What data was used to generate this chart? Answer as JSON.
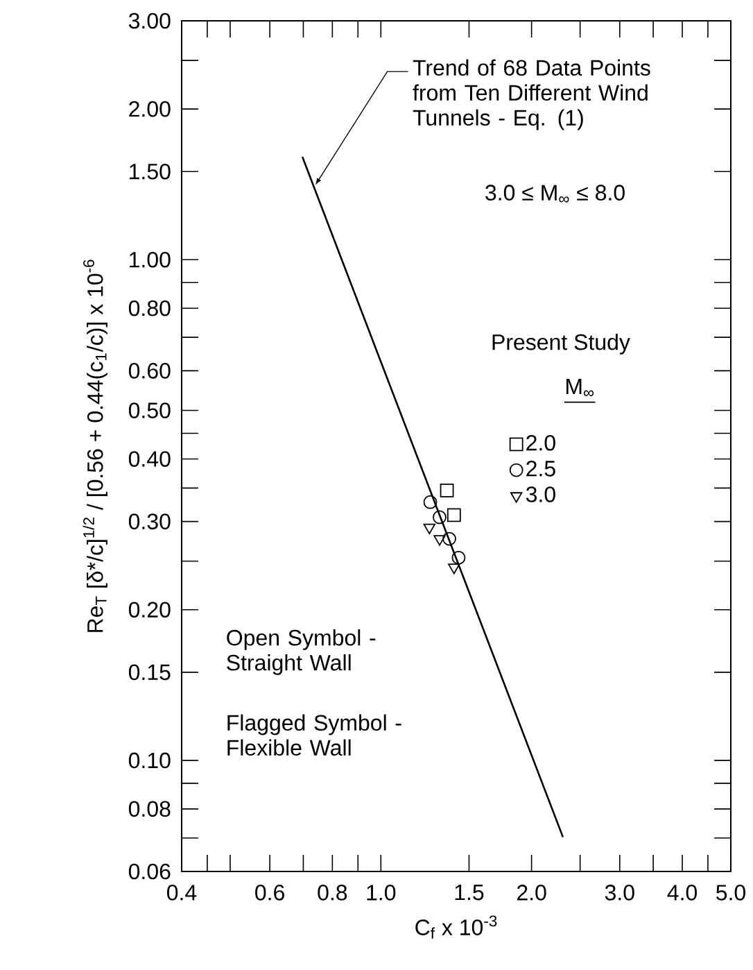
{
  "chart_data": {
    "type": "scatter",
    "log": "xy",
    "xlabel": "C$_{f}$ x 10$^{-3}$",
    "ylabel": "Re$_{T}$ [δ*/c]$^{1/2}$ / [0.56 + 0.44(c$_{1}$/c)] x 10$^{-6}$",
    "legend_title": "Present Study",
    "legend": "center",
    "xlim": [
      0.4,
      5.0
    ],
    "ylim": [
      0.06,
      3.0
    ],
    "xticks": [
      {
        "value": 0.4,
        "label": "0.4"
      },
      {
        "value": 0.45,
        "label": null
      },
      {
        "value": 0.5,
        "label": null
      },
      {
        "value": 0.6,
        "label": "0.6"
      },
      {
        "value": 0.7,
        "label": null
      },
      {
        "value": 0.8,
        "label": "0.8"
      },
      {
        "value": 0.9,
        "label": null
      },
      {
        "value": 1.0,
        "label": "1.0"
      },
      {
        "value": 1.5,
        "label": "1.5"
      },
      {
        "value": 2.0,
        "label": "2.0"
      },
      {
        "value": 2.5,
        "label": null
      },
      {
        "value": 3.0,
        "label": "3.0"
      },
      {
        "value": 3.5,
        "label": null
      },
      {
        "value": 4.0,
        "label": "4.0"
      },
      {
        "value": 4.5,
        "label": null
      },
      {
        "value": 5.0,
        "label": "5.0"
      }
    ],
    "yticks": [
      {
        "value": 0.06,
        "label": "0.06"
      },
      {
        "value": 0.07,
        "label": null
      },
      {
        "value": 0.08,
        "label": "0.08"
      },
      {
        "value": 0.09,
        "label": null
      },
      {
        "value": 0.1,
        "label": "0.10"
      },
      {
        "value": 0.15,
        "label": "0.15"
      },
      {
        "value": 0.2,
        "label": "0.20"
      },
      {
        "value": 0.25,
        "label": null
      },
      {
        "value": 0.3,
        "label": "0.30"
      },
      {
        "value": 0.35,
        "label": null
      },
      {
        "value": 0.4,
        "label": "0.40"
      },
      {
        "value": 0.45,
        "label": null
      },
      {
        "value": 0.5,
        "label": "0.50"
      },
      {
        "value": 0.6,
        "label": "0.60"
      },
      {
        "value": 0.7,
        "label": null
      },
      {
        "value": 0.8,
        "label": "0.80"
      },
      {
        "value": 0.9,
        "label": null
      },
      {
        "value": 1.0,
        "label": "1.00"
      },
      {
        "value": 1.5,
        "label": "1.50"
      },
      {
        "value": 2.0,
        "label": "2.00"
      },
      {
        "value": 2.5,
        "label": null
      },
      {
        "value": 3.0,
        "label": "3.00"
      }
    ],
    "series": [
      {
        "name": "2.0",
        "color": "#000000",
        "marker": "square",
        "x": [
          1.355,
          1.4
        ],
        "values": [
          0.346,
          0.309
        ]
      },
      {
        "name": "2.5",
        "color": "#000000",
        "marker": "circle",
        "x": [
          1.255,
          1.31,
          1.37,
          1.43
        ],
        "values": [
          0.328,
          0.306,
          0.277,
          0.254
        ]
      },
      {
        "name": "3.0",
        "color": "#000000",
        "marker": "triangle",
        "x": [
          1.25,
          1.31,
          1.4
        ],
        "values": [
          0.292,
          0.277,
          0.243
        ]
      },
      {
        "type": "line",
        "color": "#000000",
        "marker": "none",
        "line_style": "solid",
        "x": [
          0.697,
          2.31
        ],
        "values": [
          1.605,
          0.0703
        ]
      }
    ],
    "annotations": [
      {
        "text": "Trend of 68 Data Points from Ten Different Wind Tunnels - Eq. (1)",
        "x": 0.74,
        "y": 1.41
      },
      "3.0 ≤ M$_{∞}$ ≤ 8.0",
      "Open Symbol - Straight Wall",
      "Flagged Symbol - Flexible Wall",
      "M$_{∞}$"
    ]
  }
}
